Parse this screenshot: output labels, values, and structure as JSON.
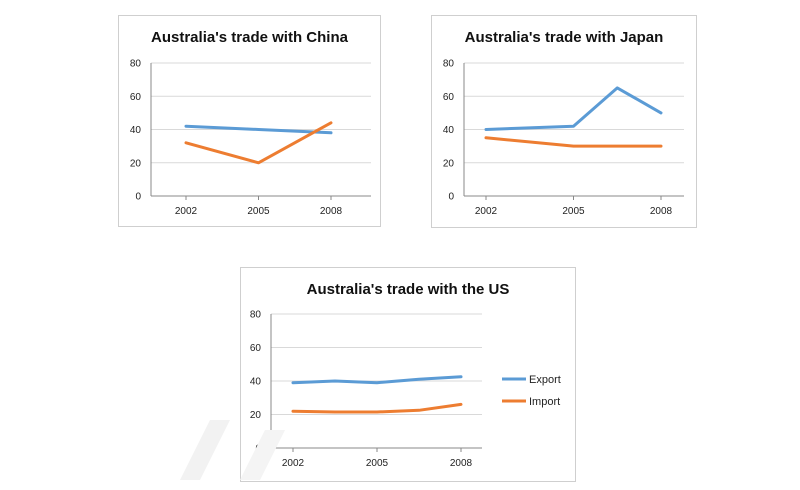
{
  "colors": {
    "export": "#5b9bd5",
    "import": "#ed7d31",
    "grid": "#d9d9d9",
    "axis": "#888888"
  },
  "legend": {
    "export": "Export",
    "import": "Import"
  },
  "chart_data": [
    {
      "type": "line",
      "title": "Australia's trade with China",
      "ylim": [
        0,
        80
      ],
      "yticks": [
        0,
        20,
        40,
        60,
        80
      ],
      "xticks": [
        "2002",
        "2005",
        "2008"
      ],
      "x": [
        2002,
        2005,
        2008
      ],
      "grid": true,
      "series": [
        {
          "name": "Export",
          "x": [
            2002,
            2005,
            2008
          ],
          "values": [
            42,
            40,
            38
          ]
        },
        {
          "name": "Import",
          "x": [
            2002,
            2005,
            2008
          ],
          "values": [
            32,
            20,
            44
          ]
        }
      ]
    },
    {
      "type": "line",
      "title": "Australia's trade with Japan",
      "ylim": [
        0,
        80
      ],
      "yticks": [
        0,
        20,
        40,
        60,
        80
      ],
      "xticks": [
        "2002",
        "2005",
        "2008"
      ],
      "x": [
        2002,
        2005,
        2006.5,
        2008
      ],
      "grid": true,
      "series": [
        {
          "name": "Export",
          "x": [
            2002,
            2005,
            2006.5,
            2008
          ],
          "values": [
            40,
            42,
            65,
            50
          ]
        },
        {
          "name": "Import",
          "x": [
            2002,
            2005,
            2006.5,
            2008
          ],
          "values": [
            35,
            30,
            30,
            30
          ]
        }
      ]
    },
    {
      "type": "line",
      "title": "Australia's trade with the US",
      "ylim": [
        0,
        80
      ],
      "yticks": [
        0,
        20,
        40,
        60,
        80
      ],
      "xticks": [
        "2002",
        "2005",
        "2008"
      ],
      "x": [
        2002,
        2003.5,
        2005,
        2006.5,
        2008
      ],
      "grid": true,
      "legend_position": "right",
      "series": [
        {
          "name": "Export",
          "x": [
            2002,
            2003.5,
            2005,
            2006.5,
            2008
          ],
          "values": [
            39,
            40,
            39,
            41,
            42.5
          ]
        },
        {
          "name": "Import",
          "x": [
            2002,
            2003.5,
            2005,
            2006.5,
            2008
          ],
          "values": [
            22,
            21.5,
            21.5,
            22.5,
            26
          ]
        }
      ]
    }
  ]
}
